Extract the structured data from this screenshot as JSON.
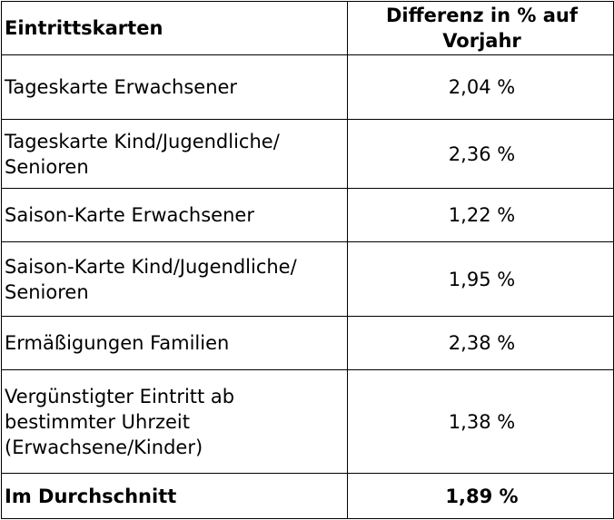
{
  "table": {
    "headers": [
      "Eintrittskarten",
      "Differenz in % auf Vorjahr"
    ],
    "rows": [
      {
        "label": "Tageskarte Erwachsener",
        "value": "2,04 %"
      },
      {
        "label": "Tageskarte Kind/Jugendliche/ Senioren",
        "value": "2,36 %"
      },
      {
        "label": "Saison-Karte Erwachsener",
        "value": "1,22 %"
      },
      {
        "label": "Saison-Karte Kind/Jugendliche/ Senioren",
        "value": "1,95 %"
      },
      {
        "label": "Ermäßigungen Familien",
        "value": "2,38 %"
      },
      {
        "label": "Vergünstigter Eintritt ab bestimmter Uhrzeit (Erwachsene/Kinder)",
        "value": "1,38 %"
      }
    ],
    "average": {
      "label": "Im Durchschnitt",
      "value": "1,89 %"
    }
  }
}
